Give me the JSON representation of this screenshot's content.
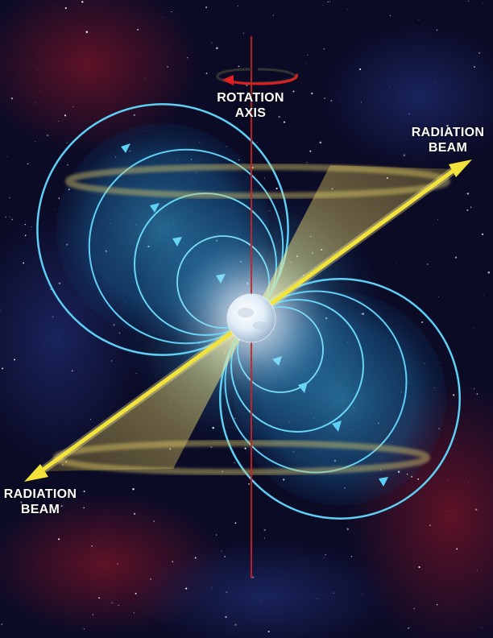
{
  "labels": {
    "rotation_axis": {
      "line1": "ROTATION",
      "line2": "AXIS"
    },
    "beam_top": {
      "line1": "RADIATION",
      "line2": "BEAM"
    },
    "beam_bottom": {
      "line1": "RADIATION",
      "line2": "BEAM"
    }
  },
  "colors": {
    "background": "#0a0a24",
    "field_lines": "#4fc3ee",
    "radiation_beam": "#f2e23a",
    "rotation_axis": "#cc2222",
    "star": "#e8f2ff"
  }
}
